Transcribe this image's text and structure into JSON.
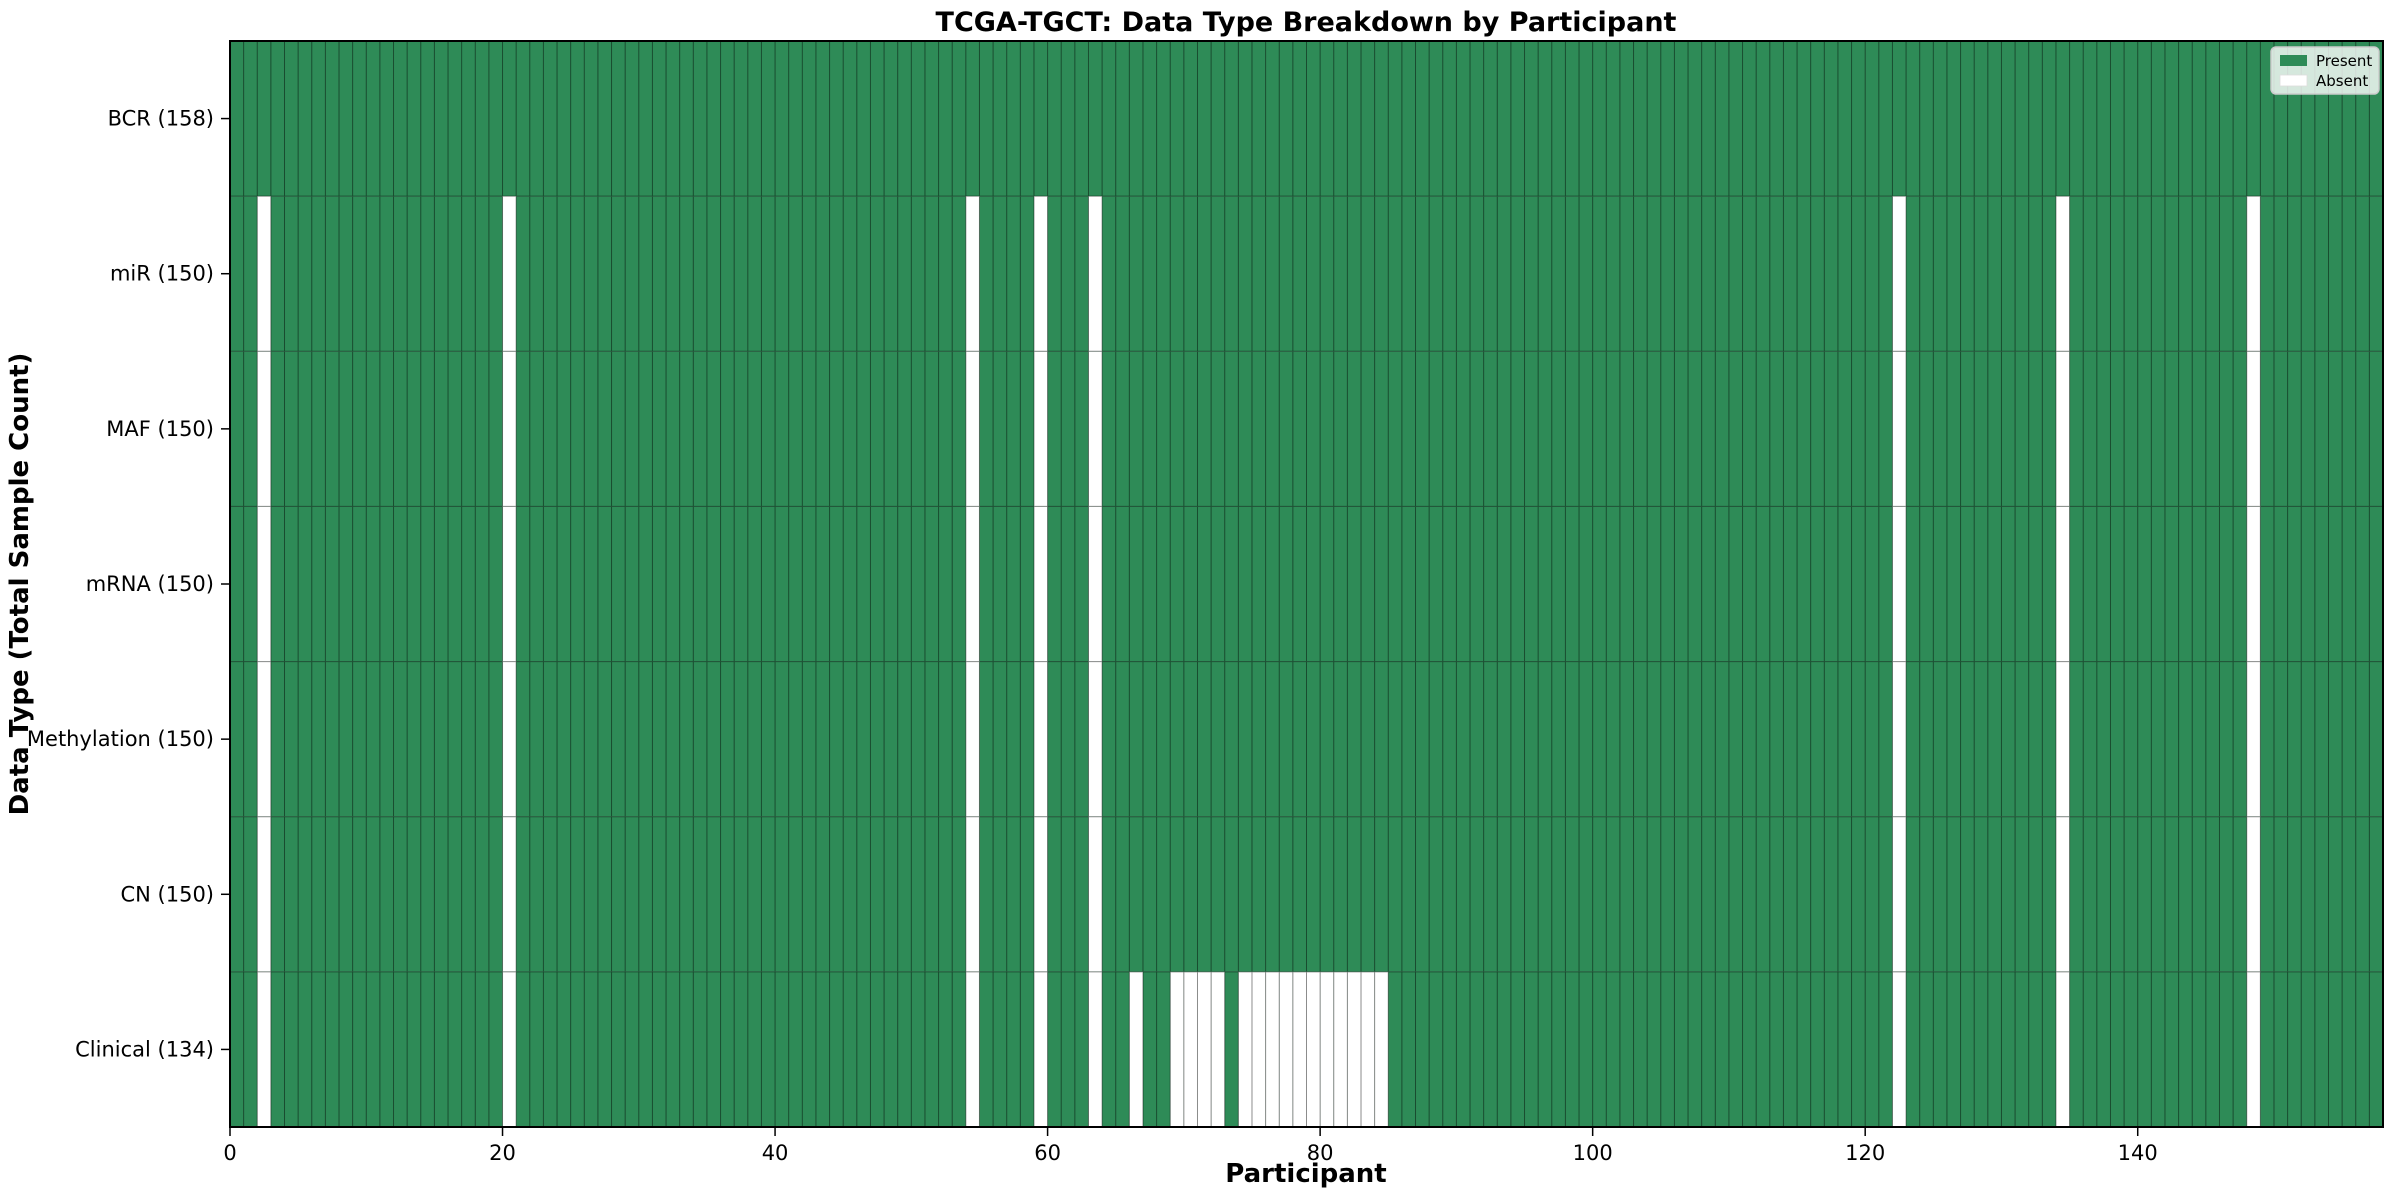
{
  "title": "TCGA-TGCT: Data Type Breakdown by Participant",
  "xlabel": "Participant",
  "ylabel": "Data Type (Total Sample Count)",
  "legend": {
    "items": [
      {
        "label": "Present",
        "color": "#2e8b57"
      },
      {
        "label": "Absent",
        "color": "#ffffff"
      }
    ]
  },
  "chart_data": {
    "type": "heatmap",
    "title": "TCGA-TGCT: Data Type Breakdown by Participant",
    "xlabel": "Participant",
    "ylabel": "Data Type (Total Sample Count)",
    "n_participants": 158,
    "x_ticks": [
      0,
      20,
      40,
      60,
      80,
      100,
      120,
      140
    ],
    "legend_position": "upper right",
    "grid": "cell-edges",
    "rows": [
      {
        "label": "BCR (158)",
        "total": 158,
        "absent": []
      },
      {
        "label": "miR (150)",
        "total": 150,
        "absent": [
          2,
          20,
          54,
          59,
          63,
          122,
          134,
          148
        ]
      },
      {
        "label": "MAF (150)",
        "total": 150,
        "absent": [
          2,
          20,
          54,
          59,
          63,
          122,
          134,
          148
        ]
      },
      {
        "label": "mRNA (150)",
        "total": 150,
        "absent": [
          2,
          20,
          54,
          59,
          63,
          122,
          134,
          148
        ]
      },
      {
        "label": "Methylation (150)",
        "total": 150,
        "absent": [
          2,
          20,
          54,
          59,
          63,
          122,
          134,
          148
        ]
      },
      {
        "label": "CN (150)",
        "total": 150,
        "absent": [
          2,
          20,
          54,
          59,
          63,
          122,
          134,
          148
        ]
      },
      {
        "label": "Clinical (134)",
        "total": 134,
        "absent": [
          2,
          20,
          54,
          59,
          63,
          66,
          69,
          70,
          71,
          72,
          74,
          75,
          76,
          77,
          78,
          79,
          80,
          81,
          82,
          83,
          84,
          122,
          134,
          148
        ]
      }
    ],
    "colors": {
      "present": "#2e8b57",
      "absent": "#ffffff",
      "cell_edge": "rgba(0,0,0,0.45)",
      "spine": "#000000",
      "legend_border": "#cccccc"
    }
  }
}
